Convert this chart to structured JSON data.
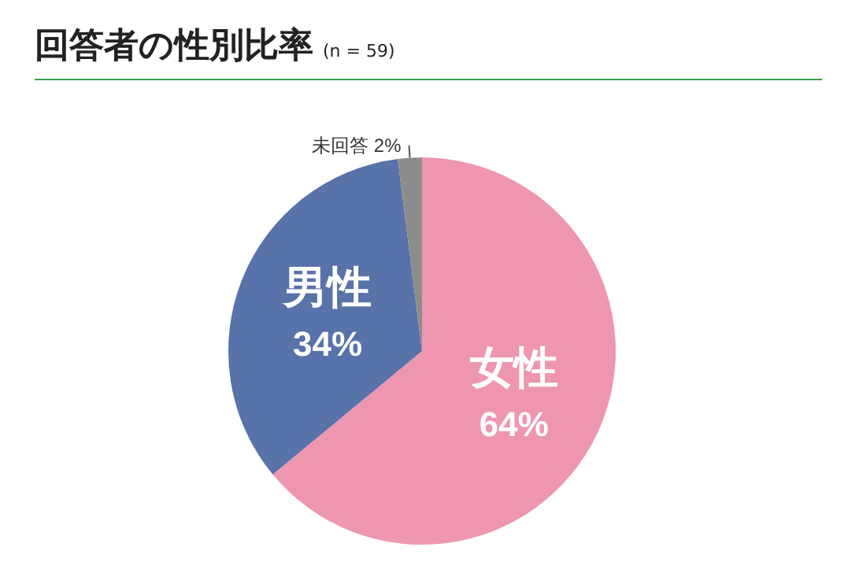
{
  "chart_data": {
    "type": "pie",
    "title": "回答者の性別比率",
    "subtitle": "(n = 59)",
    "categories": [
      "女性",
      "男性",
      "未回答"
    ],
    "values": [
      64,
      34,
      2
    ],
    "colors": [
      "#ee96b0",
      "#5872aa",
      "#8c8c8c"
    ],
    "value_labels": [
      "64%",
      "34%",
      "2%"
    ],
    "legend": false
  }
}
